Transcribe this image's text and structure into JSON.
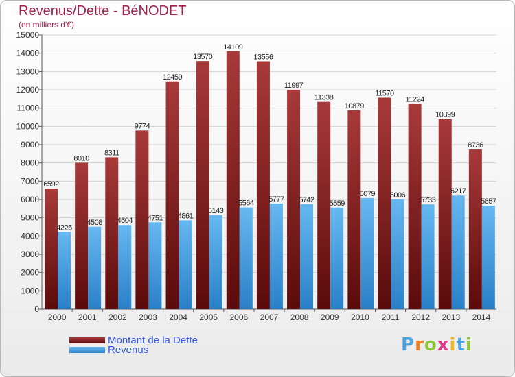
{
  "title": "Revenus/Dette - BéNODET",
  "subtitle": "(en milliers d'€)",
  "logo": {
    "letters": [
      "P",
      "r",
      "o",
      "x",
      "i",
      "t",
      "i"
    ],
    "colors": [
      "#4aa3df",
      "#f07c1c",
      "#8cc43c",
      "#e03c8c",
      "#f0b41c",
      "#4aa3df",
      "#8cc43c"
    ]
  },
  "colors": {
    "debt_top": "#a83a3a",
    "debt_bottom": "#5a0a0a",
    "rev_top": "#66b8f0",
    "rev_bottom": "#2a80c8",
    "title": "#a0204a",
    "legend_text": "#3355ee"
  },
  "chart_data": {
    "type": "bar",
    "categories": [
      "2000",
      "2001",
      "2002",
      "2003",
      "2004",
      "2005",
      "2006",
      "2007",
      "2008",
      "2009",
      "2010",
      "2011",
      "2012",
      "2013",
      "2014"
    ],
    "series": [
      {
        "name": "Montant de la Dette",
        "values": [
          6592,
          8010,
          8311,
          9774,
          12459,
          13570,
          14109,
          13556,
          11997,
          11338,
          10879,
          11570,
          11224,
          10399,
          8736
        ]
      },
      {
        "name": "Revenus",
        "values": [
          4225,
          4508,
          4604,
          4751,
          4861,
          5143,
          5564,
          5777,
          5742,
          5559,
          6079,
          6006,
          5733,
          6217,
          5657
        ]
      }
    ],
    "yticks": [
      0,
      1000,
      2000,
      3000,
      4000,
      5000,
      6000,
      7000,
      8000,
      9000,
      10000,
      11000,
      12000,
      13000,
      14000,
      15000
    ],
    "ylim": [
      0,
      15000
    ],
    "grid": true,
    "legend": "bottom-left"
  }
}
